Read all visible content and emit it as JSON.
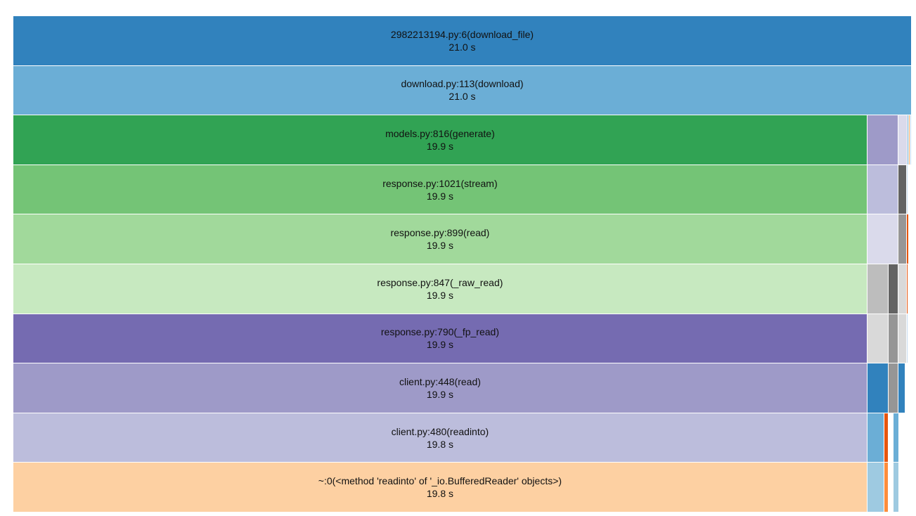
{
  "rows": [
    [
      {
        "name": "2982213194.py:6(download_file)",
        "time": "21.0 s",
        "color": "#3182bd",
        "frac": 1.0
      }
    ],
    [
      {
        "name": "download.py:113(download)",
        "time": "21.0 s",
        "color": "#6baed6",
        "frac": 1.0
      }
    ],
    [
      {
        "name": "models.py:816(generate)",
        "time": "19.9 s",
        "color": "#31a354",
        "frac": 0.9506
      },
      {
        "name": "",
        "time": "",
        "color": "#9e9ac8",
        "frac": 0.0347
      },
      {
        "name": "",
        "time": "",
        "color": "#dadaeb",
        "frac": 0.0102
      },
      {
        "name": "",
        "time": "",
        "color": "#6baed6",
        "frac": 0.0015
      },
      {
        "name": "",
        "time": "",
        "color": "#fdae6b",
        "frac": 0.0015
      },
      {
        "name": "",
        "time": "",
        "color": "#c6dbef",
        "frac": 0.0015
      }
    ],
    [
      {
        "name": "response.py:1021(stream)",
        "time": "19.9 s",
        "color": "#74c476",
        "frac": 0.9506
      },
      {
        "name": "",
        "time": "",
        "color": "#bcbddc",
        "frac": 0.0347
      },
      {
        "name": "",
        "time": "",
        "color": "#636363",
        "frac": 0.0094
      },
      {
        "name": "",
        "time": "",
        "color": "#c6dbef",
        "frac": 0.0015
      }
    ],
    [
      {
        "name": "response.py:899(read)",
        "time": "19.9 s",
        "color": "#a1d99b",
        "frac": 0.9506
      },
      {
        "name": "",
        "time": "",
        "color": "#dadaeb",
        "frac": 0.0347
      },
      {
        "name": "",
        "time": "",
        "color": "#969696",
        "frac": 0.0094
      },
      {
        "name": "",
        "time": "",
        "color": "#e6550d",
        "frac": 0.0023
      }
    ],
    [
      {
        "name": "response.py:847(_raw_read)",
        "time": "19.9 s",
        "color": "#c7e9c0",
        "frac": 0.9506
      },
      {
        "name": "",
        "time": "",
        "color": "#bdbdbd",
        "frac": 0.0239
      },
      {
        "name": "",
        "time": "",
        "color": "#636363",
        "frac": 0.0108
      },
      {
        "name": "",
        "time": "",
        "color": "#d9d9d9",
        "frac": 0.0094
      },
      {
        "name": "",
        "time": "",
        "color": "#e6550d",
        "frac": 0.0015
      }
    ],
    [
      {
        "name": "response.py:790(_fp_read)",
        "time": "19.9 s",
        "color": "#756bb1",
        "frac": 0.9506
      },
      {
        "name": "",
        "time": "",
        "color": "#d9d9d9",
        "frac": 0.0239
      },
      {
        "name": "",
        "time": "",
        "color": "#969696",
        "frac": 0.0108
      },
      {
        "name": "",
        "time": "",
        "color": "#d9d9d9",
        "frac": 0.0094
      },
      {
        "name": "",
        "time": "",
        "color": "#c6dbef",
        "frac": 0.0015
      }
    ],
    [
      {
        "name": "client.py:448(read)",
        "time": "19.9 s",
        "color": "#9e9ac8",
        "frac": 0.9506
      },
      {
        "name": "",
        "time": "",
        "color": "#3182bd",
        "frac": 0.0239
      },
      {
        "name": "",
        "time": "",
        "color": "#969696",
        "frac": 0.0108
      },
      {
        "name": "",
        "time": "",
        "color": "#3182bd",
        "frac": 0.0078
      }
    ],
    [
      {
        "name": "client.py:480(readinto)",
        "time": "19.8 s",
        "color": "#bcbddc",
        "frac": 0.9506
      },
      {
        "name": "",
        "time": "",
        "color": "#6baed6",
        "frac": 0.0185
      },
      {
        "name": "",
        "time": "",
        "color": "#e6550d",
        "frac": 0.0054
      },
      {
        "name": "",
        "time": "",
        "color": "#ffffff",
        "frac": 0.0054
      },
      {
        "name": "",
        "time": "",
        "color": "#6baed6",
        "frac": 0.0062
      }
    ],
    [
      {
        "name": "~:0(<method 'readinto' of '_io.BufferedReader' objects>)",
        "time": "19.8 s",
        "color": "#fdd0a2",
        "frac": 0.9506
      },
      {
        "name": "",
        "time": "",
        "color": "#9ecae1",
        "frac": 0.0185
      },
      {
        "name": "",
        "time": "",
        "color": "#fd8d3c",
        "frac": 0.0054
      },
      {
        "name": "",
        "time": "",
        "color": "#ffffff",
        "frac": 0.0054
      },
      {
        "name": "",
        "time": "",
        "color": "#9ecae1",
        "frac": 0.0062
      }
    ]
  ]
}
